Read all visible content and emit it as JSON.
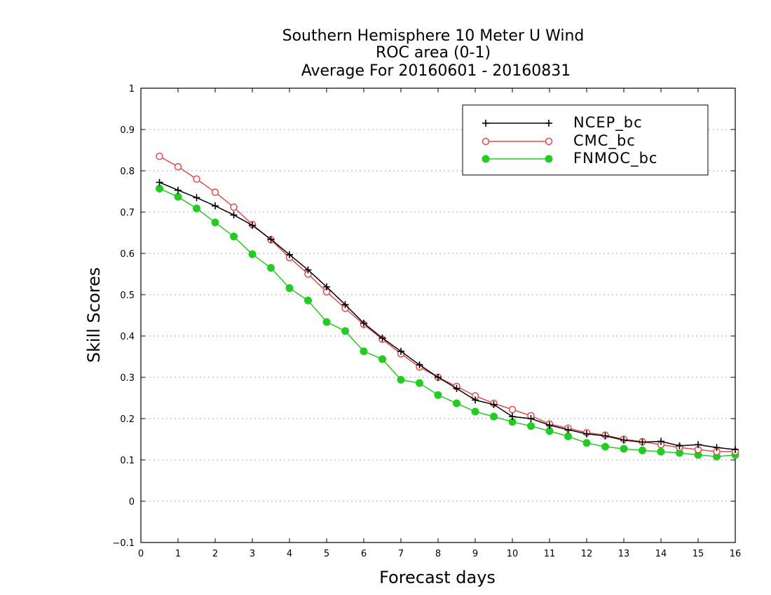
{
  "chart_data": {
    "type": "line",
    "title_lines": [
      "Southern Hemisphere 10 Meter U Wind",
      "ROC area (0-1)",
      "Average For 20160601 - 20160831"
    ],
    "xlabel": "Forecast days",
    "ylabel": "Skill Scores",
    "xlim": [
      0,
      16
    ],
    "ylim": [
      -0.1,
      1
    ],
    "xticks": [
      "0",
      "1",
      "2",
      "3",
      "4",
      "5",
      "6",
      "7",
      "8",
      "9",
      "10",
      "11",
      "12",
      "13",
      "14",
      "15",
      "16"
    ],
    "yticks": [
      "−0.1",
      "0",
      "0.1",
      "0.2",
      "0.3",
      "0.4",
      "0.5",
      "0.6",
      "0.7",
      "0.8",
      "0.9",
      "1"
    ],
    "grid": "dotted horizontal",
    "legend_position": "top-right",
    "x": [
      0.5,
      1,
      1.5,
      2,
      2.5,
      3,
      3.5,
      4,
      4.5,
      5,
      5.5,
      6,
      6.5,
      7,
      7.5,
      8,
      8.5,
      9,
      9.5,
      10,
      10.5,
      11,
      11.5,
      12,
      12.5,
      13,
      13.5,
      14,
      14.5,
      15,
      15.5,
      16
    ],
    "series": [
      {
        "name": "NCEP_bc",
        "color": "#000000",
        "marker": "plus",
        "values": [
          0.772,
          0.753,
          0.735,
          0.715,
          0.693,
          0.668,
          0.634,
          0.597,
          0.56,
          0.519,
          0.476,
          0.431,
          0.395,
          0.363,
          0.33,
          0.3,
          0.273,
          0.245,
          0.234,
          0.205,
          0.2,
          0.184,
          0.173,
          0.163,
          0.158,
          0.148,
          0.143,
          0.145,
          0.134,
          0.137,
          0.13,
          0.125
        ]
      },
      {
        "name": "CMC_bc",
        "color": "#e8484a",
        "marker": "open-circle",
        "values": [
          0.835,
          0.81,
          0.78,
          0.748,
          0.712,
          0.67,
          0.633,
          0.59,
          0.55,
          0.507,
          0.467,
          0.428,
          0.392,
          0.357,
          0.325,
          0.3,
          0.278,
          0.255,
          0.237,
          0.222,
          0.207,
          0.187,
          0.177,
          0.166,
          0.16,
          0.15,
          0.144,
          0.137,
          0.13,
          0.125,
          0.12,
          0.12
        ]
      },
      {
        "name": "FNMOC_bc",
        "color": "#22cc22",
        "marker": "filled-circle",
        "values": [
          0.757,
          0.737,
          0.709,
          0.675,
          0.641,
          0.598,
          0.565,
          0.516,
          0.486,
          0.434,
          0.412,
          0.363,
          0.344,
          0.294,
          0.286,
          0.257,
          0.237,
          0.217,
          0.205,
          0.192,
          0.182,
          0.17,
          0.157,
          0.141,
          0.132,
          0.127,
          0.123,
          0.12,
          0.117,
          0.112,
          0.108,
          0.112
        ]
      }
    ]
  }
}
